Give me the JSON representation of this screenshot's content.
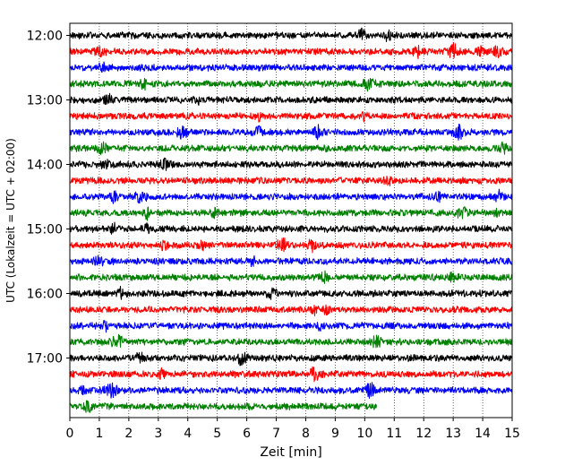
{
  "chart_data": {
    "type": "line",
    "title": "",
    "xlabel": "Zeit  [min]",
    "ylabel": "UTC (Lokalzeit = UTC + 02:00)",
    "xlim": [
      0,
      15
    ],
    "x_ticks": [
      0,
      1,
      2,
      3,
      4,
      5,
      6,
      7,
      8,
      9,
      10,
      11,
      12,
      13,
      14,
      15
    ],
    "x_tick_labels": [
      "0",
      "1",
      "2",
      "3",
      "4",
      "5",
      "6",
      "7",
      "8",
      "9",
      "10",
      "11",
      "12",
      "13",
      "14",
      "15"
    ],
    "y_tick_labels": [
      "12:00",
      "13:00",
      "14:00",
      "15:00",
      "16:00",
      "17:00"
    ],
    "vertical_grid": true,
    "grid_style": "dotted",
    "trace_colors": [
      "#000000",
      "#ff0000",
      "#0000ff",
      "#008000"
    ],
    "traces": [
      {
        "start": "12:00",
        "end_min": 15
      },
      {
        "start": "12:15",
        "end_min": 15
      },
      {
        "start": "12:30",
        "end_min": 15
      },
      {
        "start": "12:45",
        "end_min": 15
      },
      {
        "start": "13:00",
        "end_min": 15
      },
      {
        "start": "13:15",
        "end_min": 15
      },
      {
        "start": "13:30",
        "end_min": 15
      },
      {
        "start": "13:45",
        "end_min": 15
      },
      {
        "start": "14:00",
        "end_min": 15
      },
      {
        "start": "14:15",
        "end_min": 15
      },
      {
        "start": "14:30",
        "end_min": 15
      },
      {
        "start": "14:45",
        "end_min": 15
      },
      {
        "start": "15:00",
        "end_min": 15
      },
      {
        "start": "15:15",
        "end_min": 15
      },
      {
        "start": "15:30",
        "end_min": 15
      },
      {
        "start": "15:45",
        "end_min": 15
      },
      {
        "start": "16:00",
        "end_min": 15
      },
      {
        "start": "16:15",
        "end_min": 15
      },
      {
        "start": "16:30",
        "end_min": 15
      },
      {
        "start": "16:45",
        "end_min": 15
      },
      {
        "start": "17:00",
        "end_min": 15
      },
      {
        "start": "17:15",
        "end_min": 15
      },
      {
        "start": "17:30",
        "end_min": 15
      },
      {
        "start": "17:45",
        "end_min": 10.4
      }
    ],
    "events_min": [
      [
        10.8,
        9.9
      ],
      [
        1.0,
        11.8,
        13.0,
        13.9,
        14.5
      ],
      [
        1.1
      ],
      [
        2.5,
        10.1
      ],
      [
        1.3,
        4.3
      ],
      [
        6.4,
        10.0
      ],
      [
        3.8,
        6.4,
        8.4,
        13.2
      ],
      [
        1.1,
        14.7
      ],
      [
        1.2,
        3.2
      ],
      [
        10.8
      ],
      [
        1.5,
        2.4,
        12.5,
        14.6
      ],
      [
        2.6,
        4.9,
        13.3,
        14.5
      ],
      [
        1.5,
        2.6
      ],
      [
        3.2,
        4.5,
        7.2,
        8.2
      ],
      [
        1.0,
        6.2
      ],
      [
        8.6,
        13.0
      ],
      [
        1.7,
        6.8
      ],
      [
        8.3,
        8.7
      ],
      [
        1.2,
        8.5
      ],
      [
        1.6,
        10.4
      ],
      [
        2.4,
        5.8
      ],
      [
        3.1,
        8.3
      ],
      [
        0.4,
        1.4,
        10.2
      ],
      [
        0.6
      ]
    ]
  }
}
